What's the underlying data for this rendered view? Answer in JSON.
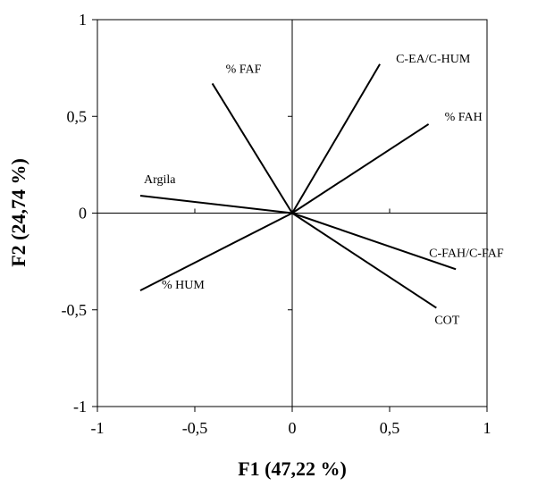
{
  "chart_data": {
    "type": "biplot",
    "title": "",
    "xlabel": "F1 (47,22 %)",
    "ylabel": "F2 (24,74 %)",
    "xlim": [
      -1,
      1
    ],
    "ylim": [
      -1,
      1
    ],
    "xticks": [
      {
        "value": -1,
        "label": "-1"
      },
      {
        "value": -0.5,
        "label": "-0,5"
      },
      {
        "value": 0,
        "label": "0"
      },
      {
        "value": 0.5,
        "label": "0,5"
      },
      {
        "value": 1,
        "label": "1"
      }
    ],
    "yticks": [
      {
        "value": -1,
        "label": "-1"
      },
      {
        "value": -0.5,
        "label": "-0,5"
      },
      {
        "value": 0,
        "label": "0"
      },
      {
        "value": 0.5,
        "label": "0,5"
      },
      {
        "value": 1,
        "label": "1"
      }
    ],
    "grid": false,
    "vectors": [
      {
        "name": "% FAF",
        "x": -0.41,
        "y": 0.67
      },
      {
        "name": "C-EA/C-HUM",
        "x": 0.45,
        "y": 0.77
      },
      {
        "name": "% FAH",
        "x": 0.7,
        "y": 0.46
      },
      {
        "name": "Argila",
        "x": -0.78,
        "y": 0.09
      },
      {
        "name": "C-FAH/C-FAF",
        "x": 0.84,
        "y": -0.29
      },
      {
        "name": "% HUM",
        "x": -0.78,
        "y": -0.4
      },
      {
        "name": "COT",
        "x": 0.74,
        "y": -0.49
      }
    ]
  }
}
